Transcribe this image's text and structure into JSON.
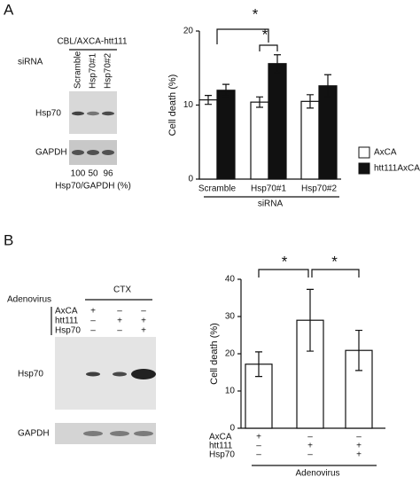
{
  "panel_labels": [
    "A",
    "B"
  ],
  "blots": [
    {
      "header": "CBL/AXCA-htt111",
      "row_label": "siRNA",
      "lanes": [
        "Scramble",
        "Hsp70#1",
        "Hsp70#2"
      ],
      "bands": [
        "Hsp70",
        "GAPDH"
      ],
      "ratios": [
        100,
        50,
        96
      ],
      "ratio_label": "Hsp70/GAPDH (%)"
    },
    {
      "header": "CTX",
      "row_label": "Adenovirus",
      "conditions": [
        {
          "name": "AxCA",
          "signs": [
            "+",
            "–",
            "–"
          ]
        },
        {
          "name": "htt111",
          "signs": [
            "–",
            "+",
            "+"
          ]
        },
        {
          "name": "Hsp70",
          "signs": [
            "–",
            "–",
            "+"
          ]
        }
      ],
      "bands": [
        "Hsp70",
        "GAPDH"
      ]
    }
  ],
  "chart_data": [
    {
      "type": "bar",
      "y_label": "Cell death (%)",
      "x_label": "siRNA",
      "categories": [
        "Scramble",
        "Hsp70#1",
        "Hsp70#2"
      ],
      "series": [
        {
          "name": "AxCA",
          "color": "#ffffff",
          "values": [
            10.7,
            10.4,
            10.5
          ],
          "errors": [
            0.6,
            0.7,
            0.9
          ]
        },
        {
          "name": "htt111AxCA",
          "color": "#111111",
          "values": [
            12.0,
            15.6,
            12.6
          ],
          "errors": [
            0.8,
            1.2,
            1.5
          ]
        }
      ],
      "ylim": [
        0,
        20
      ],
      "yticks": [
        0,
        10,
        20
      ],
      "annotations": [
        "*",
        "*"
      ]
    },
    {
      "type": "bar",
      "y_label": "Cell death (%)",
      "x_label": "Adenovirus",
      "conditions": [
        {
          "name": "AxCA",
          "signs": [
            "+",
            "–",
            "–"
          ]
        },
        {
          "name": "htt111",
          "signs": [
            "–",
            "+",
            "+"
          ]
        },
        {
          "name": "Hsp70",
          "signs": [
            "–",
            "–",
            "+"
          ]
        }
      ],
      "series": [
        {
          "color": "#ffffff",
          "values": [
            17.2,
            29.0,
            20.9
          ],
          "errors": [
            3.3,
            8.3,
            5.4
          ]
        }
      ],
      "ylim": [
        0,
        40
      ],
      "yticks": [
        0,
        10,
        20,
        30,
        40
      ],
      "annotations": [
        "*",
        "*"
      ]
    }
  ]
}
